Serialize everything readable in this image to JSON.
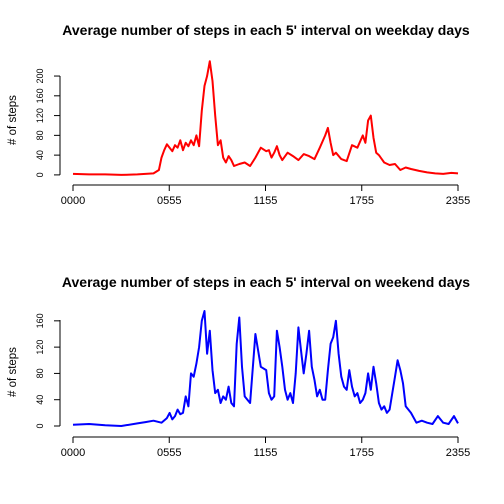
{
  "chart_data": [
    {
      "type": "line",
      "title": "Average number of steps in each 5' interval on weekday days",
      "ylabel": "# of steps",
      "xlabel": "",
      "color": "#ff0000",
      "x_ticks": [
        "0000",
        "0555",
        "1155",
        "1755",
        "2355"
      ],
      "y_ticks": [
        0,
        40,
        80,
        120,
        160,
        200
      ],
      "ylim": [
        0,
        230
      ],
      "grid": false,
      "x": [
        "0:00",
        "1:00",
        "2:00",
        "3:00",
        "4:00",
        "5:00",
        "5:20",
        "5:30",
        "5:40",
        "5:50",
        "6:00",
        "6:10",
        "6:20",
        "6:30",
        "6:40",
        "6:50",
        "7:00",
        "7:10",
        "7:20",
        "7:30",
        "7:40",
        "7:50",
        "8:00",
        "8:10",
        "8:20",
        "8:30",
        "8:40",
        "8:50",
        "9:00",
        "9:10",
        "9:20",
        "9:30",
        "9:40",
        "9:50",
        "10:00",
        "10:20",
        "10:40",
        "11:00",
        "11:20",
        "11:40",
        "12:00",
        "12:10",
        "12:20",
        "12:30",
        "12:40",
        "12:50",
        "13:00",
        "13:20",
        "13:40",
        "14:00",
        "14:20",
        "14:40",
        "15:00",
        "15:20",
        "15:40",
        "15:50",
        "16:00",
        "16:10",
        "16:20",
        "16:40",
        "17:00",
        "17:20",
        "17:40",
        "18:00",
        "18:10",
        "18:20",
        "18:30",
        "18:40",
        "18:50",
        "19:00",
        "19:20",
        "19:40",
        "20:00",
        "20:20",
        "20:40",
        "21:00",
        "21:30",
        "22:00",
        "22:30",
        "23:00",
        "23:30",
        "23:55"
      ],
      "values": [
        2,
        1,
        1,
        0,
        1,
        3,
        10,
        35,
        50,
        62,
        55,
        48,
        60,
        55,
        70,
        50,
        65,
        58,
        70,
        60,
        80,
        58,
        130,
        180,
        200,
        230,
        190,
        120,
        60,
        70,
        35,
        25,
        38,
        30,
        18,
        22,
        25,
        18,
        35,
        55,
        48,
        50,
        35,
        45,
        58,
        40,
        30,
        45,
        38,
        30,
        42,
        38,
        32,
        55,
        80,
        95,
        65,
        40,
        45,
        32,
        28,
        60,
        55,
        80,
        65,
        110,
        120,
        75,
        45,
        40,
        25,
        20,
        22,
        10,
        15,
        12,
        8,
        5,
        3,
        2,
        4,
        3
      ]
    },
    {
      "type": "line",
      "title": "Average number of steps in each 5' interval on weekend days",
      "ylabel": "# of steps",
      "xlabel": "",
      "color": "#0000ff",
      "x_ticks": [
        "0000",
        "0555",
        "1155",
        "1755",
        "2355"
      ],
      "y_ticks": [
        0,
        40,
        80,
        120,
        160
      ],
      "ylim": [
        0,
        180
      ],
      "grid": false,
      "x": [
        "0:00",
        "1:00",
        "2:00",
        "3:00",
        "4:00",
        "4:30",
        "5:00",
        "5:30",
        "5:50",
        "6:00",
        "6:10",
        "6:20",
        "6:30",
        "6:40",
        "6:50",
        "7:00",
        "7:10",
        "7:20",
        "7:30",
        "7:40",
        "7:50",
        "8:00",
        "8:10",
        "8:20",
        "8:30",
        "8:40",
        "8:50",
        "9:00",
        "9:10",
        "9:20",
        "9:30",
        "9:40",
        "9:50",
        "10:00",
        "10:10",
        "10:20",
        "10:30",
        "10:40",
        "10:50",
        "11:00",
        "11:20",
        "11:40",
        "12:00",
        "12:10",
        "12:20",
        "12:30",
        "12:40",
        "12:50",
        "13:00",
        "13:10",
        "13:20",
        "13:30",
        "13:40",
        "13:50",
        "14:00",
        "14:10",
        "14:20",
        "14:30",
        "14:40",
        "14:50",
        "15:00",
        "15:10",
        "15:20",
        "15:30",
        "15:40",
        "15:50",
        "16:00",
        "16:10",
        "16:20",
        "16:30",
        "16:40",
        "16:50",
        "17:00",
        "17:10",
        "17:20",
        "17:30",
        "17:40",
        "17:50",
        "18:00",
        "18:10",
        "18:20",
        "18:30",
        "18:40",
        "18:50",
        "19:00",
        "19:10",
        "19:20",
        "19:30",
        "19:40",
        "19:50",
        "20:00",
        "20:10",
        "20:20",
        "20:30",
        "20:40",
        "21:00",
        "21:20",
        "21:40",
        "22:00",
        "22:20",
        "22:40",
        "23:00",
        "23:20",
        "23:40",
        "23:55"
      ],
      "values": [
        2,
        3,
        1,
        0,
        4,
        6,
        8,
        5,
        12,
        20,
        10,
        15,
        25,
        18,
        20,
        45,
        30,
        80,
        75,
        95,
        120,
        160,
        175,
        110,
        145,
        85,
        50,
        55,
        35,
        45,
        40,
        60,
        35,
        30,
        125,
        165,
        90,
        45,
        40,
        35,
        140,
        90,
        85,
        50,
        40,
        45,
        145,
        120,
        90,
        55,
        40,
        50,
        35,
        80,
        150,
        115,
        80,
        110,
        145,
        90,
        70,
        45,
        55,
        40,
        40,
        85,
        125,
        135,
        160,
        110,
        75,
        60,
        55,
        85,
        60,
        45,
        50,
        35,
        40,
        50,
        80,
        55,
        90,
        65,
        35,
        25,
        30,
        20,
        25,
        50,
        75,
        100,
        85,
        65,
        30,
        20,
        5,
        8,
        5,
        3,
        15,
        5,
        3,
        15,
        4
      ]
    }
  ]
}
